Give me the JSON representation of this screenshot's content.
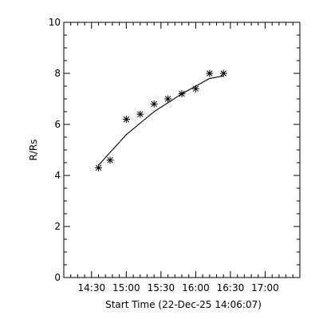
{
  "chart_data": {
    "type": "scatter",
    "title": "",
    "xlabel": "Start Time (22-Dec-25 14:06:07)",
    "ylabel": "R/Rs",
    "x_unit": "time (HH:MM)",
    "xlim": [
      "14:06",
      "17:30"
    ],
    "ylim": [
      0,
      10
    ],
    "x_ticks": [
      "14:30",
      "15:00",
      "15:30",
      "16:00",
      "16:30",
      "17:00"
    ],
    "y_ticks": [
      "0",
      "2",
      "4",
      "6",
      "8",
      "10"
    ],
    "grid": false,
    "series": [
      {
        "marker": "asterisk",
        "color": "#000000",
        "points": [
          {
            "x": "14:36",
            "y": 4.3
          },
          {
            "x": "14:46",
            "y": 4.6
          },
          {
            "x": "15:00",
            "y": 6.2
          },
          {
            "x": "15:12",
            "y": 6.4
          },
          {
            "x": "15:24",
            "y": 6.8
          },
          {
            "x": "15:36",
            "y": 7.0
          },
          {
            "x": "15:48",
            "y": 7.2
          },
          {
            "x": "16:00",
            "y": 7.4
          },
          {
            "x": "16:12",
            "y": 8.0
          },
          {
            "x": "16:24",
            "y": 8.0
          }
        ]
      },
      {
        "style": "line",
        "color": "#000000",
        "points": [
          {
            "x": "14:36",
            "y": 4.4
          },
          {
            "x": "15:00",
            "y": 5.6
          },
          {
            "x": "15:24",
            "y": 6.5
          },
          {
            "x": "15:48",
            "y": 7.2
          },
          {
            "x": "16:12",
            "y": 7.8
          },
          {
            "x": "16:24",
            "y": 7.9
          }
        ]
      }
    ]
  }
}
